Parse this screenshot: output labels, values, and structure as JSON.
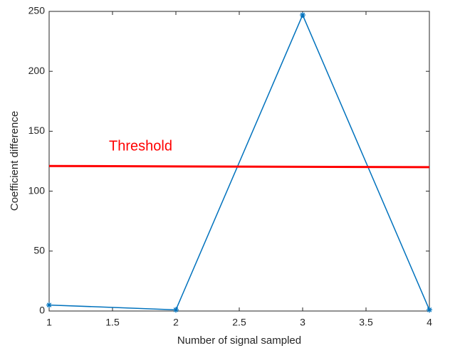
{
  "chart_data": {
    "type": "line",
    "x_label": "Number of signal sampled",
    "y_label": "Coefficient difference",
    "x": [
      1,
      2,
      3,
      4
    ],
    "series": [
      {
        "color": "#0072bd",
        "values": [
          5,
          1,
          247,
          1
        ]
      }
    ],
    "threshold": {
      "label": "Threshold",
      "color": "#ff0000",
      "x": [
        1,
        4
      ],
      "values": [
        121,
        120
      ]
    },
    "xlim": [
      1,
      4
    ],
    "xticks": [
      1,
      1.5,
      2,
      2.5,
      3,
      3.5,
      4
    ],
    "ylim": [
      0,
      250
    ],
    "yticks": [
      0,
      50,
      100,
      150,
      200,
      250
    ],
    "grid": false
  }
}
